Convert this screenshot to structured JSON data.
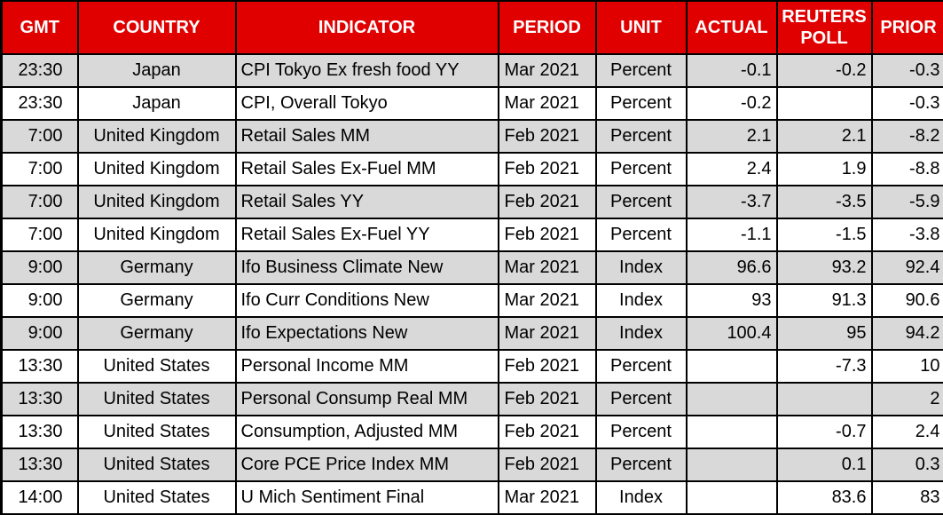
{
  "colors": {
    "header_bg": "#E00000",
    "header_text": "#FFFFFF",
    "row_stripe": "#D9D9D9",
    "row_plain": "#FFFFFF",
    "border": "#000000",
    "cell_text": "#000000"
  },
  "chart_data": {
    "type": "table",
    "columns": [
      "GMT",
      "COUNTRY",
      "INDICATOR",
      "PERIOD",
      "UNIT",
      "ACTUAL",
      "REUTERS POLL",
      "PRIOR"
    ],
    "rows": [
      [
        "23:30",
        "Japan",
        "CPI Tokyo Ex fresh food YY",
        "Mar 2021",
        "Percent",
        "-0.1",
        "-0.2",
        "-0.3"
      ],
      [
        "23:30",
        "Japan",
        "CPI, Overall Tokyo",
        "Mar 2021",
        "Percent",
        "-0.2",
        "",
        "-0.3"
      ],
      [
        "7:00",
        "United Kingdom",
        "Retail Sales MM",
        "Feb 2021",
        "Percent",
        "2.1",
        "2.1",
        "-8.2"
      ],
      [
        "7:00",
        "United Kingdom",
        "Retail Sales Ex-Fuel MM",
        "Feb 2021",
        "Percent",
        "2.4",
        "1.9",
        "-8.8"
      ],
      [
        "7:00",
        "United Kingdom",
        "Retail Sales YY",
        "Feb 2021",
        "Percent",
        "-3.7",
        "-3.5",
        "-5.9"
      ],
      [
        "7:00",
        "United Kingdom",
        "Retail Sales Ex-Fuel YY",
        "Feb 2021",
        "Percent",
        "-1.1",
        "-1.5",
        "-3.8"
      ],
      [
        "9:00",
        "Germany",
        "Ifo Business Climate New",
        "Mar 2021",
        "Index",
        "96.6",
        "93.2",
        "92.4"
      ],
      [
        "9:00",
        "Germany",
        "Ifo Curr Conditions New",
        "Mar 2021",
        "Index",
        "93",
        "91.3",
        "90.6"
      ],
      [
        "9:00",
        "Germany",
        "Ifo Expectations New",
        "Mar 2021",
        "Index",
        "100.4",
        "95",
        "94.2"
      ],
      [
        "13:30",
        "United States",
        "Personal Income MM",
        "Feb 2021",
        "Percent",
        "",
        "-7.3",
        "10"
      ],
      [
        "13:30",
        "United States",
        "Personal Consump Real MM",
        "Feb 2021",
        "Percent",
        "",
        "",
        "2"
      ],
      [
        "13:30",
        "United States",
        "Consumption, Adjusted MM",
        "Feb 2021",
        "Percent",
        "",
        "-0.7",
        "2.4"
      ],
      [
        "13:30",
        "United States",
        "Core PCE Price Index MM",
        "Feb 2021",
        "Percent",
        "",
        "0.1",
        "0.3"
      ],
      [
        "14:00",
        "United States",
        "U Mich Sentiment Final",
        "Mar 2021",
        "Index",
        "",
        "83.6",
        "83"
      ]
    ]
  }
}
